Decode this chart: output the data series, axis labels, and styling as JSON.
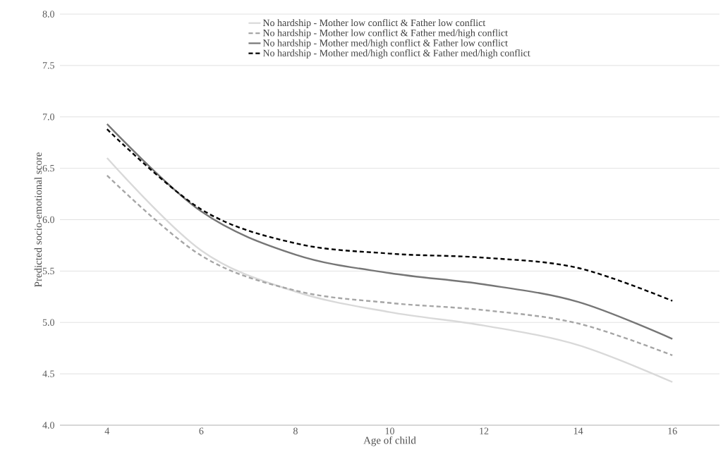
{
  "chart_data": {
    "type": "line",
    "xlabel": "Age of child",
    "ylabel": "Predicted socio-emotional score",
    "categories": [
      "4",
      "6",
      "8",
      "10",
      "12",
      "14",
      "16"
    ],
    "series": [
      {
        "name": "No hardship - Mother low conflict & Father low conflict",
        "color": "#d9d9d9",
        "line_style": "solid",
        "values": [
          6.6,
          5.7,
          5.3,
          5.1,
          4.97,
          4.78,
          4.42
        ]
      },
      {
        "name": "No hardship - Mother low conflict & Father med/high conflict",
        "color": "#a6a6a6",
        "line_style": "dashed",
        "values": [
          6.43,
          5.65,
          5.31,
          5.19,
          5.12,
          4.99,
          4.68
        ]
      },
      {
        "name": "No hardship - Mother med/high conflict &  Father low conflict",
        "color": "#767676",
        "line_style": "solid",
        "values": [
          6.93,
          6.08,
          5.66,
          5.48,
          5.37,
          5.2,
          4.84
        ]
      },
      {
        "name": "No hardship - Mother med/high conflict &  Father med/high conflict",
        "color": "#000000",
        "line_style": "dashed",
        "values": [
          6.88,
          6.1,
          5.77,
          5.67,
          5.63,
          5.53,
          5.21
        ]
      }
    ],
    "ylim": [
      4,
      8
    ],
    "yticks": [
      {
        "value": 4,
        "label": "4.0"
      },
      {
        "value": 4.5,
        "label": "4.5"
      },
      {
        "value": 5,
        "label": "5.0"
      },
      {
        "value": 5.5,
        "label": "5.5"
      },
      {
        "value": 6,
        "label": "6.0"
      },
      {
        "value": 6.5,
        "label": "6.5"
      },
      {
        "value": 7,
        "label": "7.0"
      },
      {
        "value": 7.5,
        "label": "7.5"
      },
      {
        "value": 8,
        "label": "8.0"
      }
    ],
    "grid": "y",
    "legend": "top"
  }
}
